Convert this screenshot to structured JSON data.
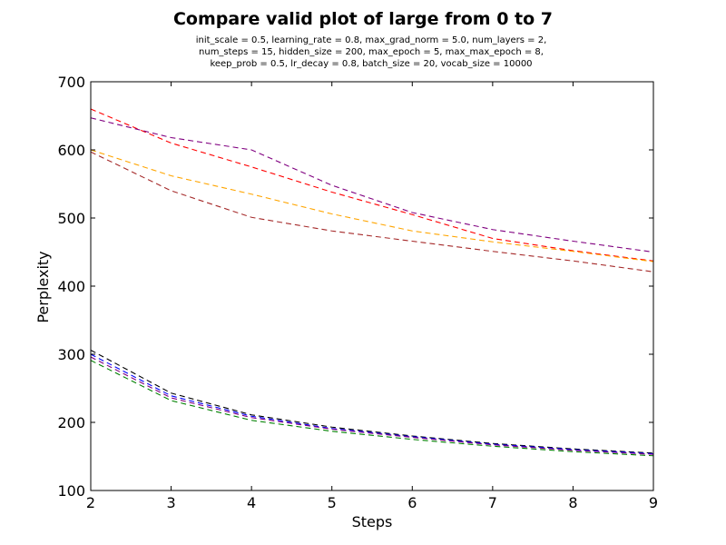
{
  "chart_data": {
    "type": "line",
    "title": "Compare valid plot of large from 0 to 7",
    "subtitle_lines": [
      "init_scale = 0.5, learning_rate = 0.8, max_grad_norm = 5.0, num_layers = 2,",
      "num_steps = 15, hidden_size = 200, max_epoch = 5, max_max_epoch = 8,",
      "keep_prob = 0.5, lr_decay = 0.8, batch_size = 20, vocab_size = 10000"
    ],
    "xlabel": "Steps",
    "ylabel": "Perplexity",
    "xlim": [
      2,
      9
    ],
    "ylim": [
      100,
      700
    ],
    "x_ticks": [
      "2",
      "3",
      "4",
      "5",
      "6",
      "7",
      "8",
      "9"
    ],
    "y_ticks": [
      "100",
      "200",
      "300",
      "400",
      "500",
      "600",
      "700"
    ],
    "grid": false,
    "legend": "none",
    "x": [
      2,
      3,
      4,
      5,
      6,
      7,
      8,
      9
    ],
    "series": [
      {
        "color": "#ff0000",
        "dashed": true,
        "values": [
          660,
          610,
          575,
          538,
          505,
          470,
          452,
          437
        ]
      },
      {
        "color": "#800080",
        "dashed": true,
        "values": [
          647,
          618,
          600,
          548,
          508,
          483,
          466,
          450
        ]
      },
      {
        "color": "#ffa500",
        "dashed": true,
        "values": [
          600,
          562,
          535,
          506,
          481,
          465,
          451,
          436
        ]
      },
      {
        "color": "#a52a2a",
        "dashed": true,
        "values": [
          597,
          540,
          501,
          481,
          466,
          451,
          437,
          421
        ]
      },
      {
        "color": "#000000",
        "dashed": true,
        "values": [
          306,
          243,
          211,
          193,
          180,
          169,
          161,
          155
        ]
      },
      {
        "color": "#0000ff",
        "dashed": true,
        "values": [
          300,
          239,
          209,
          191,
          179,
          168,
          160,
          154
        ]
      },
      {
        "color": "#800080",
        "dashed": true,
        "values": [
          296,
          236,
          207,
          190,
          178,
          167,
          159,
          153
        ]
      },
      {
        "color": "#008000",
        "dashed": true,
        "values": [
          291,
          232,
          203,
          187,
          175,
          165,
          157,
          151
        ]
      }
    ]
  }
}
